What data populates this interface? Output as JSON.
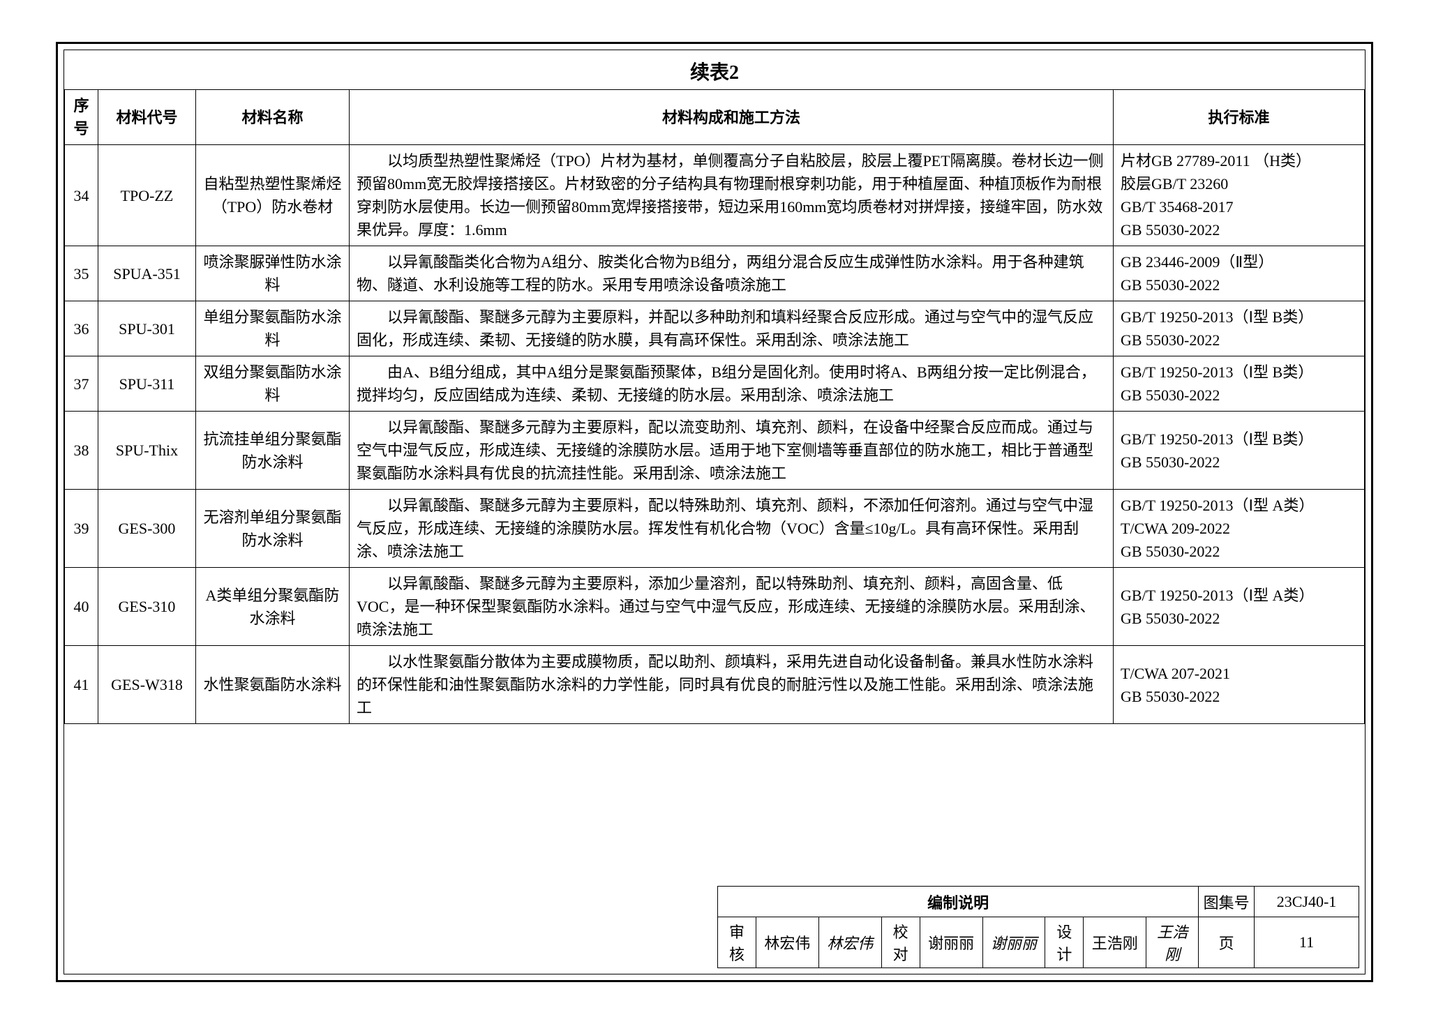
{
  "table": {
    "title": "续表2",
    "headers": {
      "seq": "序号",
      "code": "材料代号",
      "name": "材料名称",
      "desc": "材料构成和施工方法",
      "std": "执行标准"
    },
    "rows": [
      {
        "seq": "34",
        "code": "TPO-ZZ",
        "name": "自粘型热塑性聚烯烃（TPO）防水卷材",
        "desc": "以均质型热塑性聚烯烃（TPO）片材为基材，单侧覆高分子自粘胶层，胶层上覆PET隔离膜。卷材长边一侧预留80mm宽无胶焊接搭接区。片材致密的分子结构具有物理耐根穿刺功能，用于种植屋面、种植顶板作为耐根穿刺防水层使用。长边一侧预留80mm宽焊接搭接带，短边采用160mm宽均质卷材对拼焊接，接缝牢固，防水效果优异。厚度：1.6mm",
        "std": [
          "片材GB 27789-2011 （H类）",
          "胶层GB/T 23260",
          "GB/T 35468-2017",
          "GB 55030-2022"
        ]
      },
      {
        "seq": "35",
        "code": "SPUA-351",
        "name": "喷涂聚脲弹性防水涂料",
        "desc": "以异氰酸酯类化合物为A组分、胺类化合物为B组分，两组分混合反应生成弹性防水涂料。用于各种建筑物、隧道、水利设施等工程的防水。采用专用喷涂设备喷涂施工",
        "std": [
          "GB 23446-2009（Ⅱ型）",
          "GB 55030-2022"
        ]
      },
      {
        "seq": "36",
        "code": "SPU-301",
        "name": "单组分聚氨酯防水涂料",
        "desc": "以异氰酸酯、聚醚多元醇为主要原料，并配以多种助剂和填料经聚合反应形成。通过与空气中的湿气反应固化，形成连续、柔韧、无接缝的防水膜，具有高环保性。采用刮涂、喷涂法施工",
        "std": [
          "GB/T 19250-2013（Ⅰ型 B类）",
          "GB 55030-2022"
        ]
      },
      {
        "seq": "37",
        "code": "SPU-311",
        "name": "双组分聚氨酯防水涂料",
        "desc": "由A、B组分组成，其中A组分是聚氨酯预聚体，B组分是固化剂。使用时将A、B两组分按一定比例混合，搅拌均匀，反应固结成为连续、柔韧、无接缝的防水层。采用刮涂、喷涂法施工",
        "std": [
          "GB/T 19250-2013（Ⅰ型 B类）",
          "GB 55030-2022"
        ]
      },
      {
        "seq": "38",
        "code": "SPU-Thix",
        "name": "抗流挂单组分聚氨酯防水涂料",
        "desc": "以异氰酸酯、聚醚多元醇为主要原料，配以流变助剂、填充剂、颜料，在设备中经聚合反应而成。通过与空气中湿气反应，形成连续、无接缝的涂膜防水层。适用于地下室侧墙等垂直部位的防水施工，相比于普通型聚氨酯防水涂料具有优良的抗流挂性能。采用刮涂、喷涂法施工",
        "std": [
          "GB/T 19250-2013（Ⅰ型 B类）",
          "GB 55030-2022"
        ]
      },
      {
        "seq": "39",
        "code": "GES-300",
        "name": "无溶剂单组分聚氨酯防水涂料",
        "desc": "以异氰酸酯、聚醚多元醇为主要原料，配以特殊助剂、填充剂、颜料，不添加任何溶剂。通过与空气中湿气反应，形成连续、无接缝的涂膜防水层。挥发性有机化合物（VOC）含量≤10g/L。具有高环保性。采用刮涂、喷涂法施工",
        "std": [
          "GB/T 19250-2013（Ⅰ型 A类）",
          "T/CWA 209-2022",
          "GB 55030-2022"
        ]
      },
      {
        "seq": "40",
        "code": "GES-310",
        "name": "A类单组分聚氨酯防水涂料",
        "desc": "以异氰酸酯、聚醚多元醇为主要原料，添加少量溶剂，配以特殊助剂、填充剂、颜料，高固含量、低VOC，是一种环保型聚氨酯防水涂料。通过与空气中湿气反应，形成连续、无接缝的涂膜防水层。采用刮涂、喷涂法施工",
        "std": [
          "GB/T 19250-2013（Ⅰ型 A类）",
          "GB 55030-2022"
        ]
      },
      {
        "seq": "41",
        "code": "GES-W318",
        "name": "水性聚氨酯防水涂料",
        "desc": "以水性聚氨酯分散体为主要成膜物质，配以助剂、颜填料，采用先进自动化设备制备。兼具水性防水涂料的环保性能和油性聚氨酯防水涂料的力学性能，同时具有优良的耐脏污性以及施工性能。采用刮涂、喷涂法施工",
        "std": [
          "T/CWA 207-2021",
          "GB 55030-2022"
        ]
      }
    ]
  },
  "titleblock": {
    "title": "编制说明",
    "setlabel": "图集号",
    "setno": "23CJ40-1",
    "review_label": "审核",
    "review_name": "林宏伟",
    "review_sig": "林宏伟",
    "check_label": "校对",
    "check_name": "谢丽丽",
    "check_sig": "谢丽丽",
    "design_label": "设计",
    "design_name": "王浩刚",
    "design_sig": "王浩刚",
    "page_label": "页",
    "page_no": "11"
  }
}
